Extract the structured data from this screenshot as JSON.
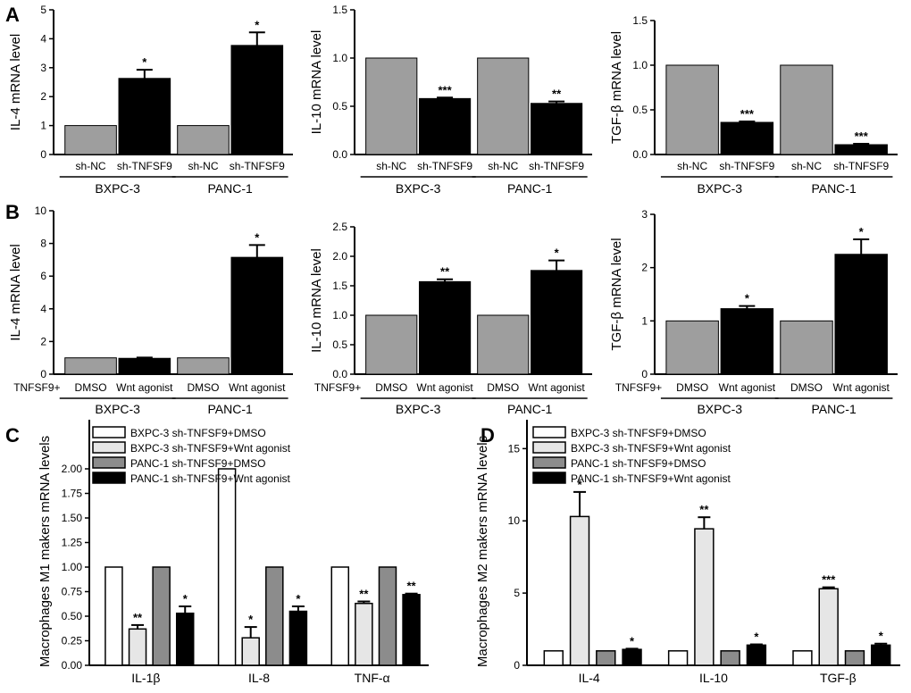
{
  "colors": {
    "gray": "#9e9e9e",
    "black": "#000000",
    "white": "#ffffff",
    "light": "#e6e6e6",
    "mid": "#8c8c8c"
  },
  "panel_labels": [
    "A",
    "B",
    "C",
    "D"
  ],
  "chart_data": [
    {
      "id": "A1",
      "type": "bar",
      "panel": "A",
      "ylabel": "IL-4 mRNA level",
      "ylim": [
        0,
        5
      ],
      "yticks": [
        "0",
        "1",
        "2",
        "3",
        "4",
        "5"
      ],
      "categories": [
        "sh-NC",
        "sh-TNFSF9",
        "sh-NC",
        "sh-TNFSF9"
      ],
      "groups": [
        "BXPC-3",
        "PANC-1"
      ],
      "values": [
        1.0,
        2.63,
        1.0,
        3.77
      ],
      "errors": [
        0,
        0.3,
        0,
        0.45
      ],
      "significance": [
        "",
        "*",
        "",
        "*"
      ],
      "colors": [
        "gray",
        "black",
        "gray",
        "black"
      ]
    },
    {
      "id": "A2",
      "type": "bar",
      "panel": "A",
      "ylabel": "IL-10 mRNA level",
      "ylim": [
        0,
        1.5
      ],
      "yticks": [
        "0.0",
        "0.5",
        "1.0",
        "1.5"
      ],
      "categories": [
        "sh-NC",
        "sh-TNFSF9",
        "sh-NC",
        "sh-TNFSF9"
      ],
      "groups": [
        "BXPC-3",
        "PANC-1"
      ],
      "values": [
        1.0,
        0.58,
        1.0,
        0.53
      ],
      "errors": [
        0,
        0.01,
        0,
        0.02
      ],
      "significance": [
        "",
        "***",
        "",
        "**"
      ],
      "colors": [
        "gray",
        "black",
        "gray",
        "black"
      ]
    },
    {
      "id": "A3",
      "type": "bar",
      "panel": "A",
      "ylabel": "TGF-β mRNA level",
      "ylim": [
        0,
        1.5
      ],
      "yticks": [
        "0.0",
        "0.5",
        "1.0",
        "1.5"
      ],
      "categories": [
        "sh-NC",
        "sh-TNFSF9",
        "sh-NC",
        "sh-TNFSF9"
      ],
      "groups": [
        "BXPC-3",
        "PANC-1"
      ],
      "values": [
        1.0,
        0.36,
        1.0,
        0.11
      ],
      "errors": [
        0,
        0.01,
        0,
        0.01
      ],
      "significance": [
        "",
        "***",
        "",
        "***"
      ],
      "colors": [
        "gray",
        "black",
        "gray",
        "black"
      ]
    },
    {
      "id": "B1",
      "type": "bar",
      "panel": "B",
      "ylabel": "IL-4 mRNA level",
      "ylim": [
        0,
        10
      ],
      "yticks": [
        "0",
        "2",
        "4",
        "6",
        "8",
        "10"
      ],
      "prefix": "TNFSF9+",
      "categories": [
        "DMSO",
        "Wnt agonist",
        "DMSO",
        "Wnt agonist"
      ],
      "groups": [
        "BXPC-3",
        "PANC-1"
      ],
      "values": [
        1.0,
        0.97,
        1.0,
        7.15
      ],
      "errors": [
        0,
        0.05,
        0,
        0.75
      ],
      "significance": [
        "",
        "",
        "",
        "*"
      ],
      "colors": [
        "gray",
        "black",
        "gray",
        "black"
      ]
    },
    {
      "id": "B2",
      "type": "bar",
      "panel": "B",
      "ylabel": "IL-10 mRNA level",
      "ylim": [
        0,
        2.5
      ],
      "yticks": [
        "0.0",
        "0.5",
        "1.0",
        "1.5",
        "2.0",
        "2.5"
      ],
      "prefix": "TNFSF9+",
      "categories": [
        "DMSO",
        "Wnt agonist",
        "DMSO",
        "Wnt agonist"
      ],
      "groups": [
        "BXPC-3",
        "PANC-1"
      ],
      "values": [
        1.0,
        1.57,
        1.0,
        1.76
      ],
      "errors": [
        0,
        0.04,
        0,
        0.17
      ],
      "significance": [
        "",
        "**",
        "",
        "*"
      ],
      "colors": [
        "gray",
        "black",
        "gray",
        "black"
      ]
    },
    {
      "id": "B3",
      "type": "bar",
      "panel": "B",
      "ylabel": "TGF-β mRNA level",
      "ylim": [
        0,
        3
      ],
      "yticks": [
        "0",
        "1",
        "2",
        "3"
      ],
      "prefix": "TNFSF9+",
      "categories": [
        "DMSO",
        "Wnt agonist",
        "DMSO",
        "Wnt agonist"
      ],
      "groups": [
        "BXPC-3",
        "PANC-1"
      ],
      "values": [
        1.0,
        1.23,
        1.0,
        2.25
      ],
      "errors": [
        0,
        0.05,
        0,
        0.28
      ],
      "significance": [
        "",
        "*",
        "",
        "*"
      ],
      "colors": [
        "gray",
        "black",
        "gray",
        "black"
      ]
    },
    {
      "id": "C",
      "type": "grouped-bar",
      "panel": "C",
      "ylabel": "Macrophages M1 makers mRNA levels",
      "ylim": [
        0,
        2.5
      ],
      "yticks": [
        "0.00",
        "0.25",
        "0.50",
        "0.75",
        "1.00",
        "1.25",
        "1.50",
        "1.75",
        "2.00"
      ],
      "categories": [
        "IL-1β",
        "IL-8",
        "TNF-α"
      ],
      "legend": [
        "BXPC-3 sh-TNFSF9+DMSO",
        "BXPC-3 sh-TNFSF9+Wnt agonist",
        "PANC-1 sh-TNFSF9+DMSO",
        "PANC-1 sh-TNFSF9+Wnt agonist"
      ],
      "series_colors": [
        "white",
        "light",
        "mid",
        "black"
      ],
      "series": [
        {
          "name": "BXPC-3 sh-TNFSF9+DMSO",
          "values": [
            1.0,
            2.0,
            1.0
          ],
          "errors": [
            0,
            0,
            0
          ],
          "sig": [
            "",
            "",
            ""
          ]
        },
        {
          "name": "BXPC-3 sh-TNFSF9+Wnt agonist",
          "values": [
            0.37,
            0.28,
            0.63
          ],
          "errors": [
            0.04,
            0.11,
            0.02
          ],
          "sig": [
            "**",
            "*",
            "**"
          ]
        },
        {
          "name": "PANC-1 sh-TNFSF9+DMSO",
          "values": [
            1.0,
            1.0,
            1.0
          ],
          "errors": [
            0,
            0,
            0
          ],
          "sig": [
            "",
            "",
            ""
          ]
        },
        {
          "name": "PANC-1 sh-TNFSF9+Wnt agonist",
          "values": [
            0.53,
            0.55,
            0.72
          ],
          "errors": [
            0.07,
            0.05,
            0.01
          ],
          "sig": [
            "*",
            "*",
            "**"
          ]
        }
      ]
    },
    {
      "id": "D",
      "type": "grouped-bar",
      "panel": "D",
      "ylabel": "Macrophages M2 makers mRNA levels",
      "ylim": [
        0,
        17
      ],
      "yticks": [
        "0",
        "5",
        "10",
        "15"
      ],
      "categories": [
        "IL-4",
        "IL-10",
        "TGF-β"
      ],
      "legend": [
        "BXPC-3 sh-TNFSF9+DMSO",
        "BXPC-3 sh-TNFSF9+Wnt agonist",
        "PANC-1 sh-TNFSF9+DMSO",
        "PANC-1 sh-TNFSF9+Wnt agonist"
      ],
      "series_colors": [
        "white",
        "light",
        "mid",
        "black"
      ],
      "series": [
        {
          "name": "BXPC-3 sh-TNFSF9+DMSO",
          "values": [
            1.0,
            1.0,
            1.0
          ],
          "errors": [
            0,
            0,
            0
          ],
          "sig": [
            "",
            "",
            ""
          ]
        },
        {
          "name": "BXPC-3 sh-TNFSF9+Wnt agonist",
          "values": [
            10.3,
            9.45,
            5.3
          ],
          "errors": [
            1.7,
            0.8,
            0.1
          ],
          "sig": [
            "*",
            "**",
            "***"
          ]
        },
        {
          "name": "PANC-1 sh-TNFSF9+DMSO",
          "values": [
            1.0,
            1.0,
            1.0
          ],
          "errors": [
            0,
            0,
            0
          ],
          "sig": [
            "",
            "",
            ""
          ]
        },
        {
          "name": "PANC-1 sh-TNFSF9+Wnt agonist",
          "values": [
            1.1,
            1.4,
            1.4
          ],
          "errors": [
            0.05,
            0.05,
            0.1
          ],
          "sig": [
            "*",
            "*",
            "*"
          ]
        }
      ]
    }
  ]
}
